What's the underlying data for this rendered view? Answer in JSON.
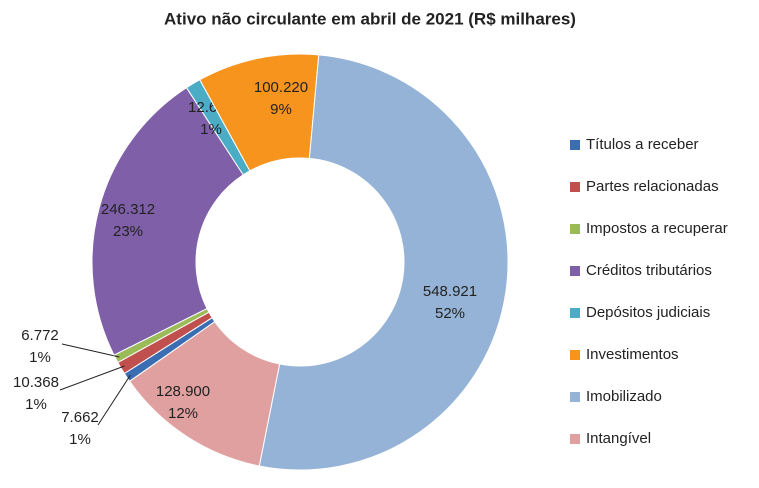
{
  "chart_data": {
    "type": "donut",
    "title": "Ativo não circulante em abril de 2021 (R$ milhares)",
    "categories": [
      "Títulos a receber",
      "Partes relacionadas",
      "Impostos a recuperar",
      "Créditos tributários",
      "Depósitos judiciais",
      "Investimentos",
      "Imobilizado",
      "Intangível"
    ],
    "values": [
      7662,
      10368,
      6772,
      246312,
      12605,
      100220,
      548921,
      128900
    ],
    "value_labels": [
      "7.662",
      "10.368",
      "6.772",
      "246.312",
      "12.605",
      "100.220",
      "548.921",
      "128.900"
    ],
    "percent_labels": [
      "1%",
      "1%",
      "1%",
      "23%",
      "1%",
      "9%",
      "52%",
      "12%"
    ],
    "colors": [
      "#3b6db3",
      "#c0504d",
      "#9bbb59",
      "#7f5fa8",
      "#4bacc6",
      "#f7941e",
      "#95b3d7",
      "#e0a0a0"
    ],
    "legend": "right"
  }
}
